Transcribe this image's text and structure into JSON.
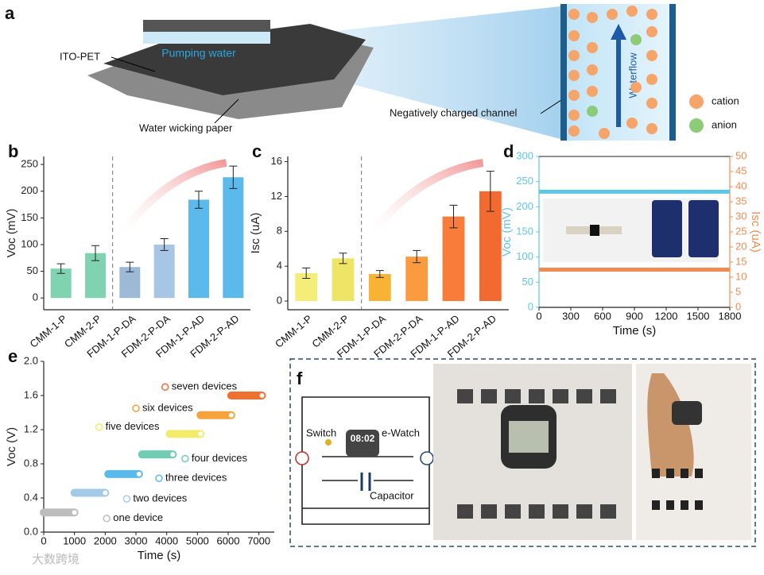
{
  "panel_a": {
    "label": "a",
    "pumping": "Pumping water",
    "ito": "ITO-PET",
    "paper": "Water wicking paper",
    "channel": "Negatively charged channel",
    "flow": "Waterflow",
    "cation": "cation",
    "anion": "anion"
  },
  "panel_f": {
    "label": "f",
    "switch": "Switch",
    "time": "08:02",
    "watch": "e-Watch",
    "capacitor": "Capacitor"
  },
  "watermark": "大数跨境",
  "chart_data": [
    {
      "type": "bar",
      "panel": "b",
      "y_label": "Voc (mV)",
      "categories": [
        "CMM-1-P",
        "CMM-2-P",
        "FDM-1-P-DA",
        "FDM-2-P-DA",
        "FDM-1-P-AD",
        "FDM-2-P-AD"
      ],
      "values": [
        55,
        84,
        58,
        100,
        184,
        226
      ],
      "errors": [
        9,
        14,
        9,
        11,
        16,
        21
      ],
      "colors": [
        "#7fd3b0",
        "#7fd3b0",
        "#9cbad6",
        "#a7c6e6",
        "#5cb9ec",
        "#5cb9ec"
      ],
      "ylim": [
        -22,
        265
      ],
      "yticks": [
        0,
        50,
        100,
        150,
        200,
        250
      ]
    },
    {
      "type": "bar",
      "panel": "c",
      "y_label": "Isc (uA)",
      "categories": [
        "CMM-1-P",
        "CMM-2-P",
        "FDM-1-P-DA",
        "FDM-2-P-DA",
        "FDM-1-P-AD",
        "FDM-2-P-AD"
      ],
      "values": [
        3.2,
        4.9,
        3.1,
        5.1,
        9.7,
        12.6
      ],
      "errors": [
        0.6,
        0.6,
        0.4,
        0.7,
        1.3,
        2.3
      ],
      "colors": [
        "#f4ee78",
        "#eee567",
        "#f9b334",
        "#f99b3e",
        "#f97c3a",
        "#f26a30"
      ],
      "ylim": [
        -1,
        16.6
      ],
      "yticks": [
        0,
        4,
        8,
        12,
        16
      ]
    },
    {
      "type": "line",
      "panel": "d",
      "x_label": "Time (s)",
      "y_label": "Voc (mV)",
      "y2_label": "Isc (uA)",
      "x": [
        0,
        300,
        600,
        900,
        1200,
        1500,
        1800
      ],
      "xlim": [
        0,
        1800
      ],
      "xticks": [
        0,
        300,
        600,
        900,
        1200,
        1500,
        1800
      ],
      "ylim": [
        0,
        300
      ],
      "yticks": [
        0,
        50,
        100,
        150,
        200,
        250,
        300
      ],
      "y2lim": [
        0,
        50
      ],
      "y2ticks": [
        0,
        5,
        10,
        15,
        20,
        25,
        30,
        35,
        40,
        45,
        50
      ],
      "series": [
        {
          "color": "#5bc6ea",
          "values": [
            230,
            230,
            230,
            230,
            230,
            230,
            230
          ]
        },
        {
          "color": "#f08a50",
          "values": [
            12.5,
            12.5,
            12.5,
            12.5,
            12.5,
            12.5,
            12.5
          ],
          "axis": "y2"
        }
      ]
    },
    {
      "type": "line",
      "panel": "e",
      "x_label": "Time (s)",
      "y_label": "Voc (V)",
      "xlim": [
        0,
        7500
      ],
      "xticks": [
        0,
        1000,
        2000,
        3000,
        4000,
        5000,
        6000,
        7000
      ],
      "ylim": [
        0,
        2
      ],
      "yticks": [
        {
          "value": 0,
          "label": "0.0"
        },
        0.4,
        0.8,
        1.2,
        1.6,
        {
          "value": 2,
          "label": "2.0"
        }
      ],
      "series": [
        {
          "name": "one device",
          "color": "#bdbdbd",
          "x": [
            0,
            1000
          ],
          "values": [
            0.23,
            0.23
          ]
        },
        {
          "name": "two devices",
          "color": "#a3cbe8",
          "x": [
            1000,
            2000
          ],
          "values": [
            0.46,
            0.46
          ]
        },
        {
          "name": "three devices",
          "color": "#5cb9ec",
          "x": [
            2100,
            3100
          ],
          "values": [
            0.68,
            0.68
          ]
        },
        {
          "name": "four devices",
          "color": "#6fcdb6",
          "x": [
            3200,
            4200
          ],
          "values": [
            0.91,
            0.91
          ]
        },
        {
          "name": "five devices",
          "color": "#f2ec6a",
          "x": [
            4100,
            5100
          ],
          "values": [
            1.15,
            1.15
          ]
        },
        {
          "name": "six devices",
          "color": "#f5a33a",
          "x": [
            5100,
            6100
          ],
          "values": [
            1.37,
            1.37
          ]
        },
        {
          "name": "seven devices",
          "color": "#f07030",
          "x": [
            6100,
            7100
          ],
          "values": [
            1.6,
            1.6
          ]
        }
      ]
    }
  ]
}
